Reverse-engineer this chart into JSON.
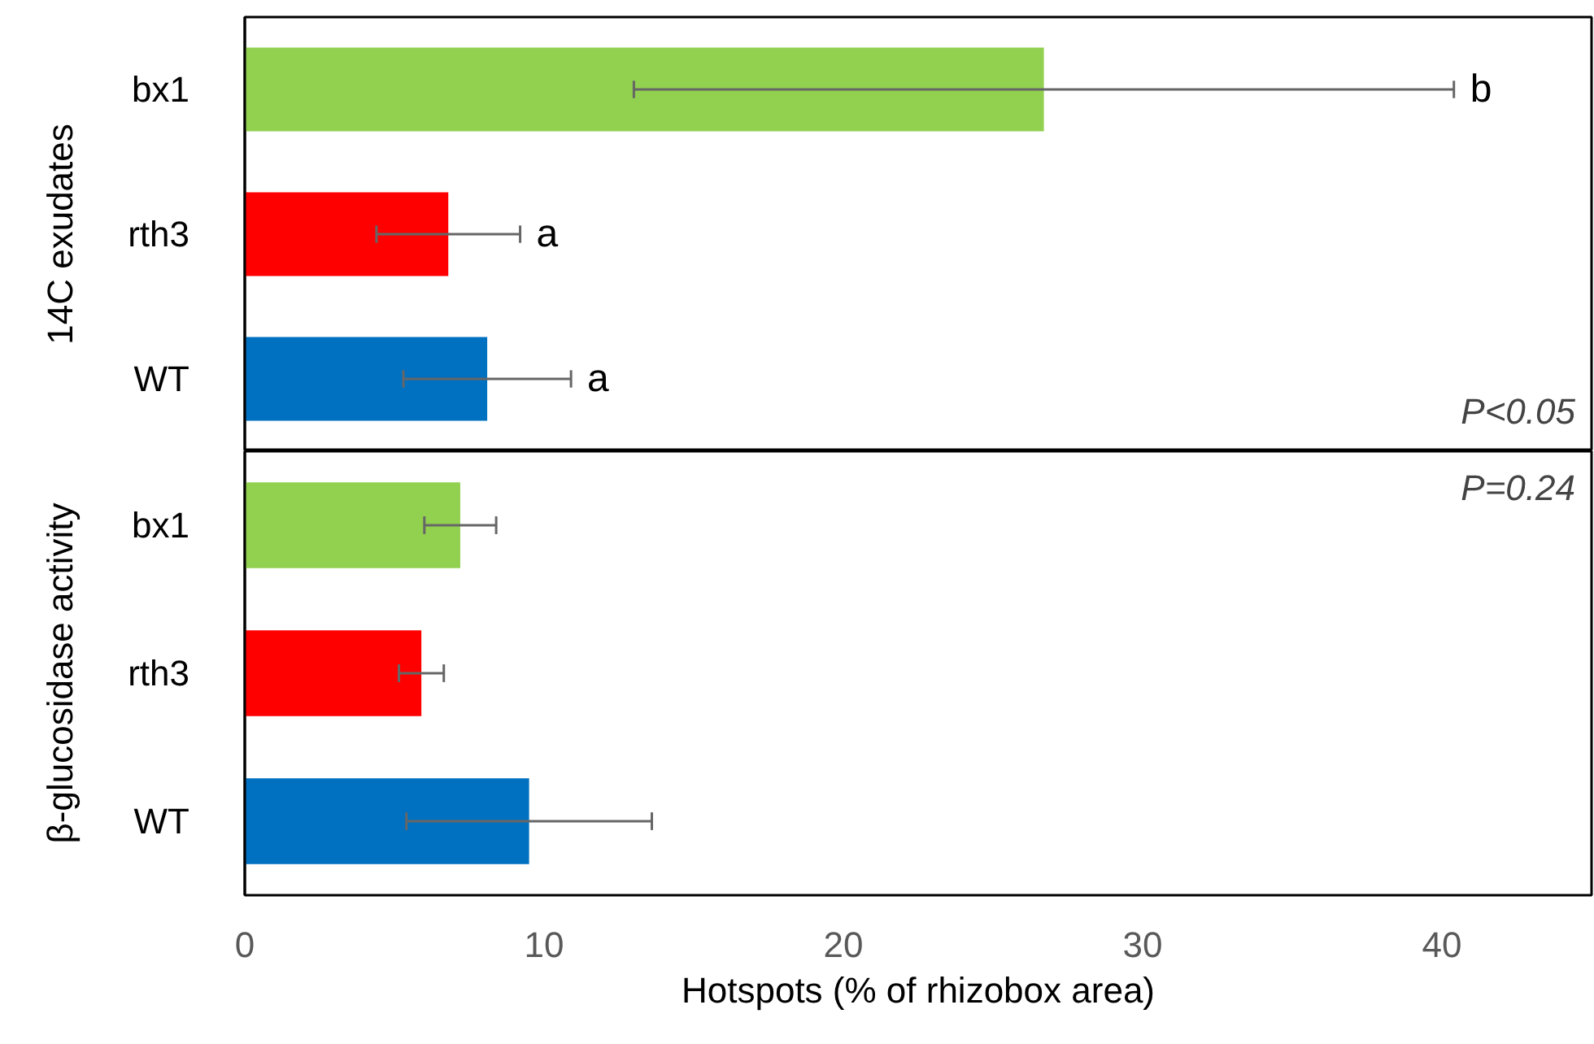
{
  "chart_data": [
    {
      "type": "bar",
      "orientation": "horizontal",
      "ylabel": "14C exudates",
      "categories": [
        "bx1",
        "rth3",
        "WT"
      ],
      "values": [
        26.7,
        6.8,
        8.1
      ],
      "colors": [
        "#92d050",
        "#ff0000",
        "#0070c0"
      ],
      "errors": [
        13.7,
        2.4,
        2.8
      ],
      "xlim": [
        0,
        45
      ],
      "xticks": [
        0,
        10,
        20,
        30,
        40
      ],
      "tick_labels": "y",
      "grid": false,
      "annotations": [
        "P<0.05",
        {
          "text": "b",
          "x": 40.4,
          "y": "bx1"
        },
        {
          "text": "a",
          "x": 9.2,
          "y": "rth3"
        },
        {
          "text": "a",
          "x": 10.9,
          "y": "WT"
        }
      ]
    },
    {
      "type": "bar",
      "orientation": "horizontal",
      "ylabel": "β-glucosidase activity",
      "xlabel": "Hotspots (% of rhizobox area)",
      "categories": [
        "bx1",
        "rth3",
        "WT"
      ],
      "values": [
        7.2,
        5.9,
        9.5
      ],
      "colors": [
        "#92d050",
        "#ff0000",
        "#0070c0"
      ],
      "errors": [
        1.2,
        0.75,
        4.1
      ],
      "xlim": [
        0,
        45
      ],
      "xticks": [
        0,
        10,
        20,
        30,
        40
      ],
      "grid": false,
      "annotations": [
        "P=0.24"
      ]
    }
  ]
}
